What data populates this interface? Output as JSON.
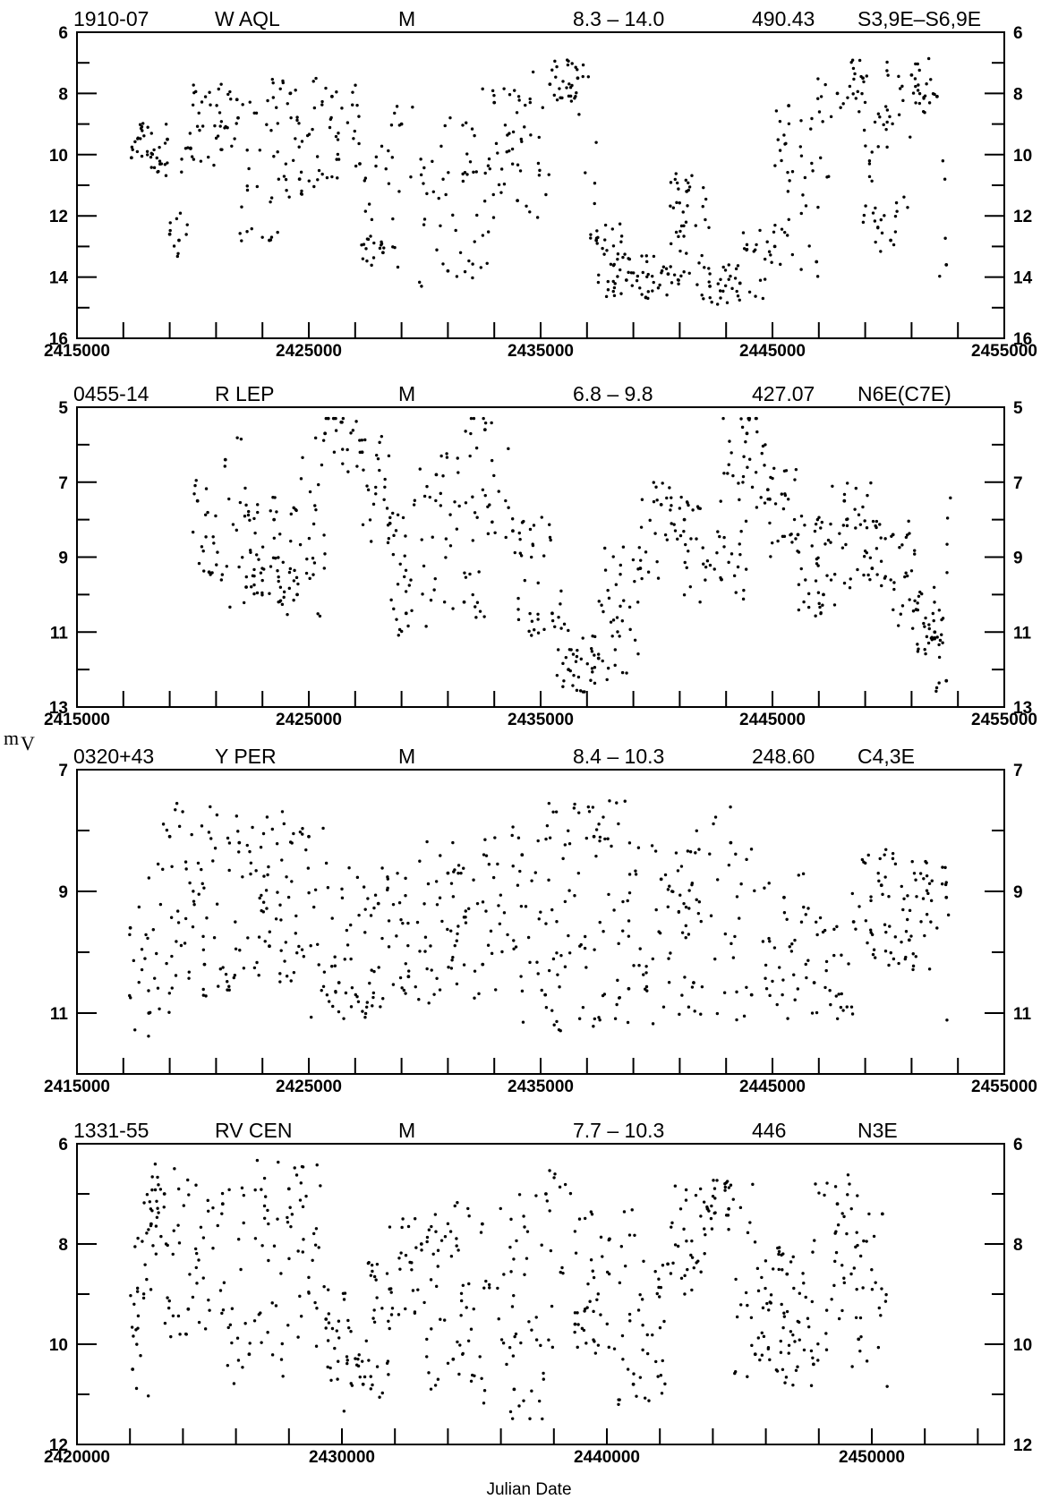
{
  "figure": {
    "y_axis_label": "m",
    "y_axis_label_sub": "V",
    "x_axis_label": "Julian Date"
  },
  "chart_data": [
    {
      "type": "scatter",
      "header": [
        "1910-07",
        "W  AQL",
        "M",
        "8.3  –  14.0",
        "490.43",
        "S3,9E–S6,9E"
      ],
      "xlabel": "Julian Date",
      "ylabel": "mV",
      "xlim": [
        2415000,
        2455000
      ],
      "ylim": [
        6,
        16
      ],
      "y_inverted": true,
      "x_ticks": [
        2415000,
        2425000,
        2435000,
        2445000,
        2455000
      ],
      "x_minor_step": 2000,
      "y_ticks": [
        6,
        8,
        10,
        12,
        14,
        16
      ],
      "y_minor_step": 1,
      "data_x_range": [
        2417300,
        2452600
      ],
      "points_estimated": [
        [
          2417350,
          10.1
        ],
        [
          2418900,
          9.5
        ],
        [
          2419000,
          12.6
        ],
        [
          2419400,
          12.8
        ],
        [
          2419900,
          9.8
        ],
        [
          2421900,
          8.2
        ],
        [
          2421950,
          8.8
        ],
        [
          2423300,
          12.8
        ],
        [
          2424200,
          8.0
        ],
        [
          2424600,
          10.8
        ],
        [
          2426000,
          8.1
        ],
        [
          2427200,
          10.3
        ],
        [
          2428200,
          13.2
        ],
        [
          2429000,
          9.0
        ],
        [
          2431000,
          13.8
        ],
        [
          2433000,
          8.3
        ],
        [
          2434000,
          11.5
        ],
        [
          2435400,
          7.7
        ],
        [
          2436600,
          7.5
        ],
        [
          2437400,
          12.8
        ],
        [
          2438700,
          14.1
        ],
        [
          2440500,
          13.9
        ],
        [
          2441300,
          11.2
        ],
        [
          2442300,
          14.3
        ],
        [
          2443600,
          14.2
        ],
        [
          2445100,
          13.0
        ],
        [
          2445700,
          8.4
        ],
        [
          2446900,
          13.5
        ],
        [
          2447800,
          8.0
        ],
        [
          2448900,
          7.5
        ],
        [
          2450100,
          12.8
        ],
        [
          2451000,
          7.4
        ],
        [
          2452100,
          8.1
        ],
        [
          2452500,
          13.6
        ]
      ]
    },
    {
      "type": "scatter",
      "header": [
        "0455-14",
        "R  LEP",
        "M",
        "6.8  –   9.8",
        "427.07",
        "N6E(C7E)"
      ],
      "xlabel": "Julian Date",
      "ylabel": "mV",
      "xlim": [
        2415000,
        2455000
      ],
      "ylim": [
        5,
        13
      ],
      "y_inverted": true,
      "x_ticks": [
        2415000,
        2425000,
        2435000,
        2445000,
        2455000
      ],
      "x_minor_step": 2000,
      "y_ticks": [
        5,
        7,
        9,
        11,
        13
      ],
      "y_minor_step": 1,
      "data_x_range": [
        2420000,
        2452700
      ],
      "points_estimated": [
        [
          2420200,
          7.5
        ],
        [
          2420700,
          9.4
        ],
        [
          2421400,
          6.4
        ],
        [
          2422300,
          9.8
        ],
        [
          2423500,
          8.0
        ],
        [
          2424500,
          10.0
        ],
        [
          2425700,
          5.7
        ],
        [
          2426400,
          5.4
        ],
        [
          2427300,
          6.2
        ],
        [
          2428500,
          8.1
        ],
        [
          2429200,
          10.5
        ],
        [
          2430500,
          6.8
        ],
        [
          2431700,
          10.2
        ],
        [
          2432600,
          5.6
        ],
        [
          2433800,
          8.3
        ],
        [
          2435500,
          10.5
        ],
        [
          2436200,
          12.0
        ],
        [
          2437500,
          11.7
        ],
        [
          2439300,
          9.3
        ],
        [
          2440200,
          7.6
        ],
        [
          2441200,
          8.0
        ],
        [
          2442800,
          9.6
        ],
        [
          2443900,
          5.7
        ],
        [
          2444800,
          7.2
        ],
        [
          2446100,
          8.4
        ],
        [
          2447200,
          10.0
        ],
        [
          2448100,
          7.5
        ],
        [
          2449300,
          9.3
        ],
        [
          2450200,
          8.4
        ],
        [
          2451200,
          10.4
        ],
        [
          2452000,
          11.0
        ],
        [
          2452500,
          12.3
        ]
      ]
    },
    {
      "type": "scatter",
      "header": [
        "0320+43",
        "Y  PER",
        "M",
        "8.4  –  10.3",
        "248.60",
        "C4,3E"
      ],
      "xlabel": "Julian Date",
      "ylabel": "mV",
      "xlim": [
        2415000,
        2455000
      ],
      "ylim": [
        7,
        12
      ],
      "y_inverted": true,
      "x_ticks": [
        2415000,
        2425000,
        2435000,
        2445000,
        2455000
      ],
      "x_minor_step": 2000,
      "y_ticks": [
        7,
        9,
        11
      ],
      "y_minor_step": 1,
      "data_x_range": [
        2417200,
        2452600
      ],
      "points_estimated": [
        [
          2417300,
          9.6
        ],
        [
          2418100,
          11.0
        ],
        [
          2419000,
          8.1
        ],
        [
          2420500,
          10.2
        ],
        [
          2422000,
          8.2
        ],
        [
          2423300,
          9.9
        ],
        [
          2425000,
          8.1
        ],
        [
          2426300,
          10.5
        ],
        [
          2428000,
          9.2
        ],
        [
          2429300,
          10.4
        ],
        [
          2431000,
          8.7
        ],
        [
          2432500,
          10.2
        ],
        [
          2434200,
          8.4
        ],
        [
          2435200,
          10.7
        ],
        [
          2437300,
          8.1
        ],
        [
          2438800,
          10.6
        ],
        [
          2440200,
          8.8
        ],
        [
          2441600,
          10.5
        ],
        [
          2443200,
          8.2
        ],
        [
          2444100,
          10.7
        ],
        [
          2445500,
          9.1
        ],
        [
          2446800,
          10.5
        ],
        [
          2448500,
          9.5
        ],
        [
          2449700,
          8.9
        ],
        [
          2450900,
          9.8
        ],
        [
          2452500,
          9.1
        ]
      ]
    },
    {
      "type": "scatter",
      "header": [
        "1331-55",
        "RV  CEN",
        "M",
        "7.7  –  10.3",
        "446",
        "N3E"
      ],
      "xlabel": "Julian Date",
      "ylabel": "mV",
      "xlim": [
        2420000,
        2455000
      ],
      "ylim": [
        6,
        12
      ],
      "y_inverted": true,
      "x_ticks": [
        2420000,
        2430000,
        2440000,
        2450000
      ],
      "x_minor_step": 2000,
      "y_ticks": [
        6,
        8,
        10,
        12
      ],
      "y_minor_step": 1,
      "data_x_range": [
        2422000,
        2450600
      ],
      "points_estimated": [
        [
          2422100,
          10.5
        ],
        [
          2422800,
          7.6
        ],
        [
          2423300,
          7.0
        ],
        [
          2424200,
          9.3
        ],
        [
          2425500,
          7.2
        ],
        [
          2426500,
          10.2
        ],
        [
          2428000,
          6.9
        ],
        [
          2429400,
          9.5
        ],
        [
          2430800,
          10.8
        ],
        [
          2431800,
          8.9
        ],
        [
          2433000,
          8.0
        ],
        [
          2434200,
          10.3
        ],
        [
          2435300,
          7.6
        ],
        [
          2436500,
          10.9
        ],
        [
          2437700,
          7.0
        ],
        [
          2438800,
          9.6
        ],
        [
          2440100,
          7.9
        ],
        [
          2441000,
          10.8
        ],
        [
          2442300,
          8.4
        ],
        [
          2443800,
          7.3
        ],
        [
          2444600,
          7.3
        ],
        [
          2445600,
          10.2
        ],
        [
          2446800,
          8.6
        ],
        [
          2447800,
          10.4
        ],
        [
          2448700,
          7.2
        ],
        [
          2449500,
          9.9
        ],
        [
          2450400,
          7.4
        ]
      ]
    }
  ]
}
